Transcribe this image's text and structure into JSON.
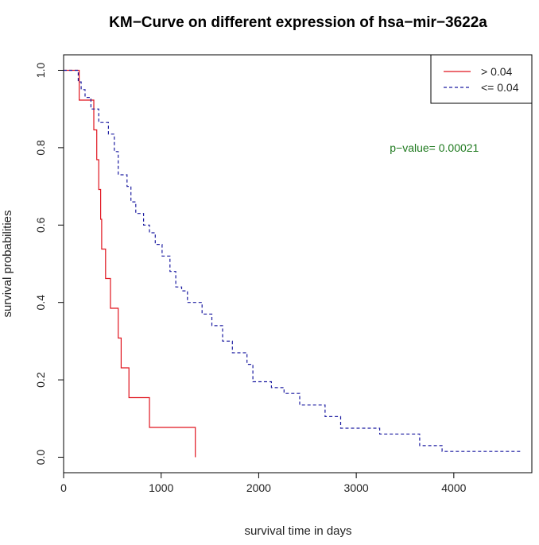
{
  "chart_data": {
    "type": "line",
    "title": "KM−Curve on different expression of hsa−mir−3622a",
    "xlabel": "survival time in days",
    "ylabel": "survival probabilities",
    "xlim": [
      0,
      4800
    ],
    "ylim": [
      -0.04,
      1.04
    ],
    "x_ticks": [
      0,
      1000,
      2000,
      3000,
      4000
    ],
    "y_ticks": [
      0.0,
      0.2,
      0.4,
      0.6,
      0.8,
      1.0
    ],
    "x_tick_labels": [
      "0",
      "1000",
      "2000",
      "3000",
      "4000"
    ],
    "y_tick_labels": [
      "0.0",
      "0.2",
      "0.4",
      "0.6",
      "0.8",
      "1.0"
    ],
    "grid": false,
    "legend_position": "top-right",
    "annotation": {
      "text": "p−value= 0.00021",
      "color": "#1f7a1f",
      "x": 3800,
      "y": 0.8
    },
    "series": [
      {
        "name": "> 0.04",
        "color": "#e0141e",
        "style": "solid",
        "x": [
          0,
          160,
          160,
          310,
          310,
          340,
          340,
          360,
          360,
          380,
          380,
          390,
          390,
          430,
          430,
          480,
          480,
          560,
          560,
          590,
          590,
          670,
          670,
          880,
          880,
          1250,
          1250,
          1350,
          1350
        ],
        "y": [
          1.0,
          1.0,
          0.923,
          0.923,
          0.846,
          0.846,
          0.769,
          0.769,
          0.692,
          0.692,
          0.615,
          0.615,
          0.538,
          0.538,
          0.462,
          0.462,
          0.385,
          0.385,
          0.308,
          0.308,
          0.231,
          0.231,
          0.154,
          0.154,
          0.077,
          0.077,
          0.077,
          0.077,
          0.0
        ]
      },
      {
        "name": "<= 0.04",
        "color": "#1a1aa0",
        "style": "dashed",
        "x": [
          0,
          150,
          150,
          180,
          180,
          220,
          220,
          280,
          280,
          360,
          360,
          460,
          460,
          520,
          520,
          560,
          560,
          650,
          650,
          690,
          690,
          740,
          740,
          820,
          820,
          880,
          880,
          940,
          940,
          1010,
          1010,
          1090,
          1090,
          1150,
          1150,
          1210,
          1210,
          1270,
          1270,
          1420,
          1420,
          1520,
          1520,
          1630,
          1630,
          1730,
          1730,
          1880,
          1880,
          1940,
          1940,
          2130,
          2130,
          2260,
          2260,
          2420,
          2420,
          2680,
          2680,
          2840,
          2840,
          3240,
          3240,
          3650,
          3650,
          3880,
          3880,
          4680
        ],
        "y": [
          1.0,
          1.0,
          0.97,
          0.97,
          0.95,
          0.95,
          0.93,
          0.93,
          0.9,
          0.9,
          0.865,
          0.865,
          0.835,
          0.835,
          0.79,
          0.79,
          0.73,
          0.73,
          0.7,
          0.7,
          0.66,
          0.66,
          0.63,
          0.63,
          0.6,
          0.6,
          0.58,
          0.58,
          0.55,
          0.55,
          0.52,
          0.52,
          0.48,
          0.48,
          0.44,
          0.44,
          0.43,
          0.43,
          0.4,
          0.4,
          0.37,
          0.37,
          0.34,
          0.34,
          0.3,
          0.3,
          0.27,
          0.27,
          0.24,
          0.24,
          0.195,
          0.195,
          0.18,
          0.18,
          0.165,
          0.165,
          0.135,
          0.135,
          0.105,
          0.105,
          0.075,
          0.075,
          0.06,
          0.06,
          0.03,
          0.03,
          0.015,
          0.015
        ]
      }
    ]
  }
}
